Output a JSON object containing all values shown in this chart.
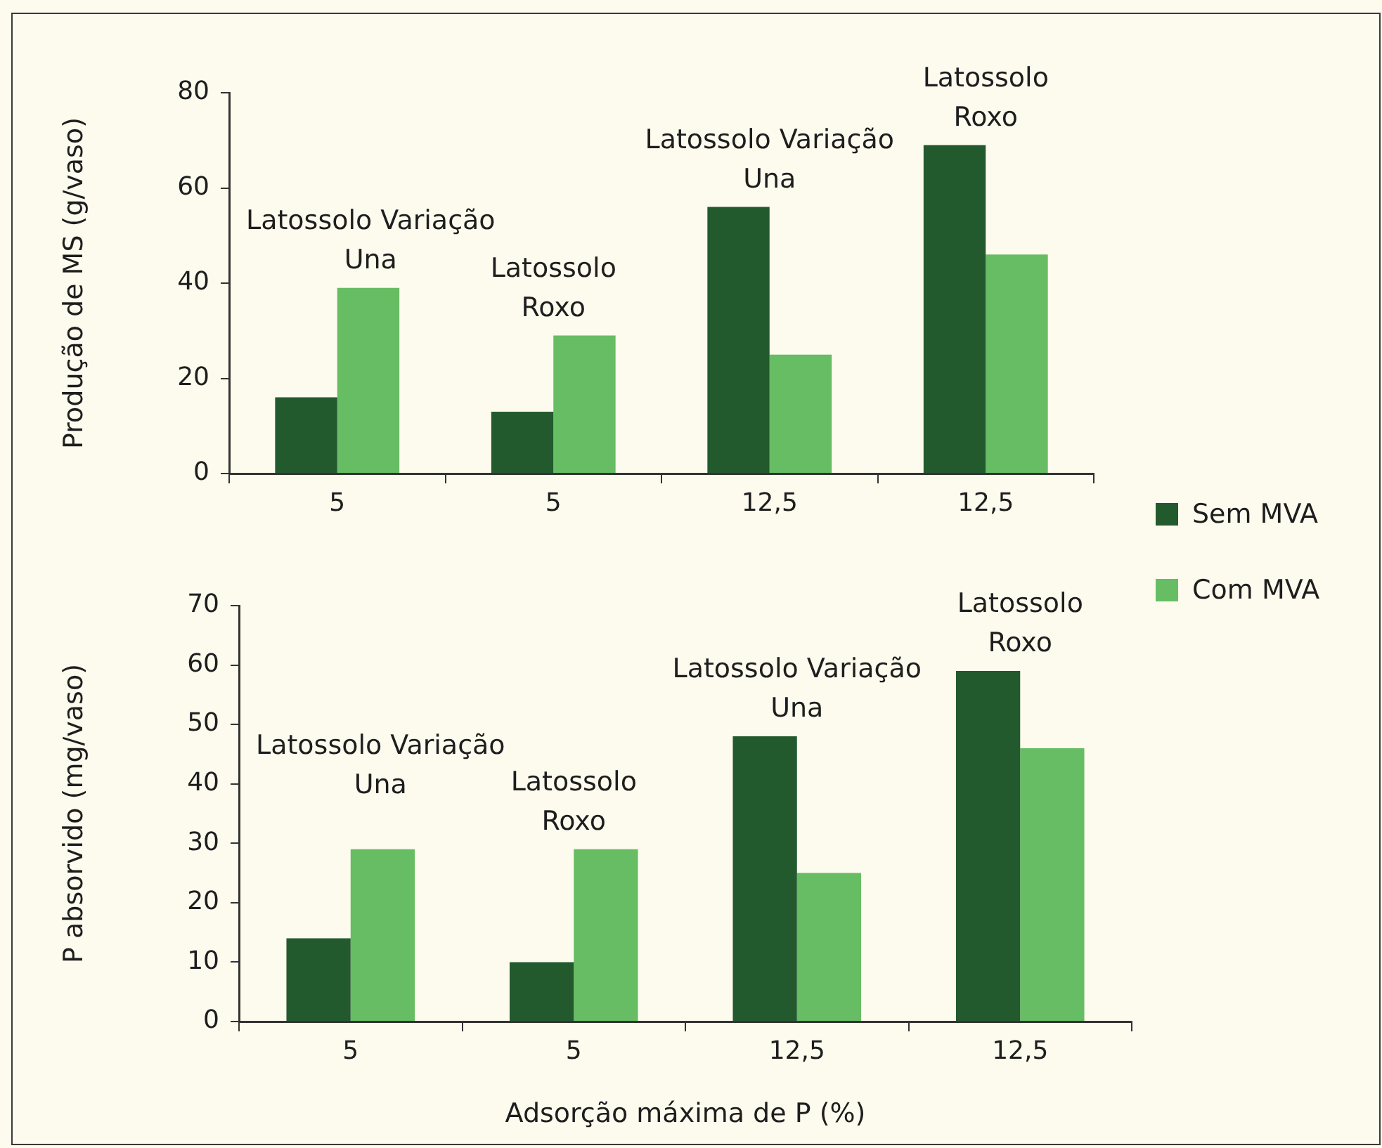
{
  "chart_data": [
    {
      "type": "bar",
      "ylabel": "Produção de MS (g/vaso)",
      "categories": [
        "5",
        "5",
        "12,5",
        "12,5"
      ],
      "series": [
        {
          "name": "Sem MVA",
          "color": "#225a2e",
          "values": [
            16,
            13,
            56,
            69
          ]
        },
        {
          "name": "Com MVA",
          "color": "#66bd63",
          "values": [
            39,
            29,
            25,
            46
          ]
        }
      ],
      "ylim": [
        0,
        80
      ],
      "yticks": [
        0,
        20,
        40,
        60,
        80
      ],
      "annotations": [
        "Latossolo Variação Una",
        "Latossolo Roxo",
        "Latossolo Variação Una",
        "Latossolo Roxo"
      ],
      "legend": "right"
    },
    {
      "type": "bar",
      "xlabel": "Adsorção máxima de P (%)",
      "ylabel": "P absorvido (mg/vaso)",
      "categories": [
        "5",
        "5",
        "12,5",
        "12,5"
      ],
      "series": [
        {
          "color": "#225a2e",
          "values": [
            14,
            10,
            48,
            59
          ]
        },
        {
          "color": "#66bd63",
          "values": [
            29,
            29,
            25,
            46
          ]
        }
      ],
      "ylim": [
        0,
        70
      ],
      "yticks": [
        0,
        10,
        20,
        30,
        40,
        50,
        60,
        70
      ],
      "annotations": [
        "Latossolo Variação Una",
        "Latossolo Roxo",
        "Latossolo Variação Una",
        "Latossolo Roxo"
      ]
    }
  ]
}
